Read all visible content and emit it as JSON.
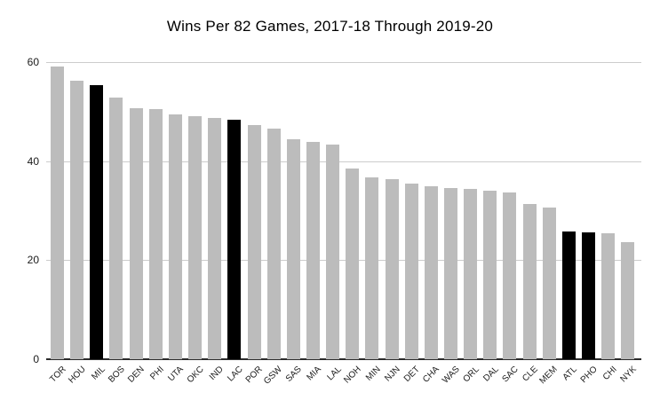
{
  "chart_data": {
    "type": "bar",
    "title": "Wins Per 82 Games, 2017-18 Through 2019-20",
    "xlabel": "",
    "ylabel": "",
    "categories": [
      "TOR",
      "HOU",
      "MIL",
      "BOS",
      "DEN",
      "PHI",
      "UTA",
      "OKC",
      "IND",
      "LAC",
      "POR",
      "GSW",
      "SAS",
      "MIA",
      "LAL",
      "NOH",
      "MIN",
      "NJN",
      "DET",
      "CHA",
      "WAS",
      "ORL",
      "DAL",
      "SAC",
      "CLE",
      "MEM",
      "ATL",
      "PHO",
      "CHI",
      "NYK"
    ],
    "values": [
      59.1,
      56.3,
      55.4,
      52.8,
      50.6,
      50.5,
      49.4,
      49.0,
      48.8,
      48.3,
      47.2,
      46.5,
      44.4,
      43.8,
      43.3,
      38.5,
      36.7,
      36.4,
      35.5,
      35.0,
      34.6,
      34.4,
      34.1,
      33.6,
      31.4,
      30.7,
      25.8,
      25.6,
      25.4,
      23.7
    ],
    "highlighted_categories": [
      "MIL",
      "LAC",
      "ATL",
      "PHO"
    ],
    "yticks": [
      0,
      20,
      40,
      60
    ],
    "ylim": [
      0,
      60
    ],
    "grid": true,
    "legend_position": "none",
    "colors": {
      "bar_default": "#bcbcbc",
      "bar_highlight": "#000000",
      "gridline": "#cccccc",
      "axis_line": "#2b2b2b",
      "title_text": "#000000",
      "tick_text": "#1a1a1a",
      "background": "#ffffff"
    }
  }
}
